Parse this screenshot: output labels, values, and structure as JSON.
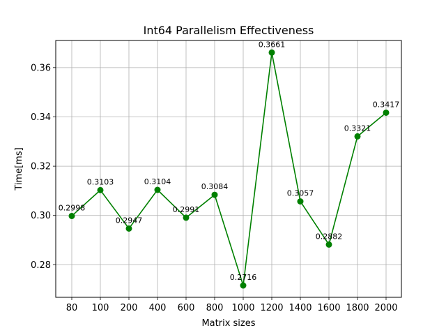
{
  "chart_data": {
    "type": "line",
    "title": "Int64 Parallelism Effectiveness",
    "xlabel": "Matrix sizes",
    "ylabel": "Time[ms]",
    "categories": [
      "80",
      "100",
      "200",
      "400",
      "600",
      "800",
      "1000",
      "1200",
      "1400",
      "1600",
      "1800",
      "2000"
    ],
    "series": [
      {
        "values": [
          0.2998,
          0.3103,
          0.2947,
          0.3104,
          0.2991,
          0.3084,
          0.2716,
          0.3661,
          0.3057,
          0.2882,
          0.3321,
          0.3417
        ],
        "color": "#008000",
        "marker": "circle"
      }
    ],
    "data_labels": [
      "0.2998",
      "0.3103",
      "0.2947",
      "0.3104",
      "0.2991",
      "0.3084",
      "0.2716",
      "0.3661",
      "0.3057",
      "0.2882",
      "0.3321",
      "0.3417"
    ],
    "ylim": [
      0.2668,
      0.371
    ],
    "yticks": [
      0.28,
      0.3,
      0.32,
      0.34,
      0.36
    ],
    "ytick_labels": [
      "0.28",
      "0.30",
      "0.32",
      "0.34",
      "0.36"
    ],
    "grid": true,
    "legend": "none"
  }
}
